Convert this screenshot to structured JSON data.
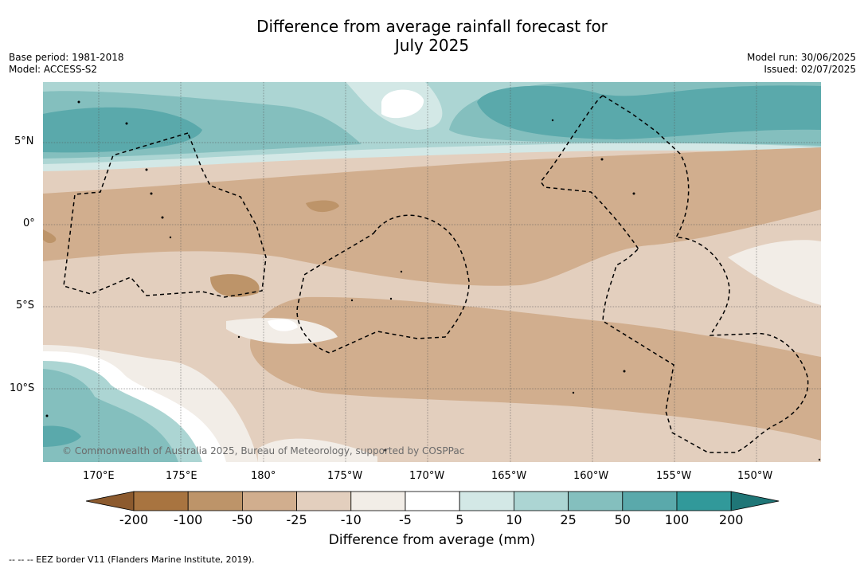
{
  "title_line1": "Difference from average rainfall forecast for",
  "title_line2": "July 2025",
  "base_period": "Base period: 1981-2018",
  "model": "Model: ACCESS-S2",
  "model_run": "Model run: 30/06/2025",
  "issued": "Issued: 02/07/2025",
  "copyright": "© Commonwealth of Australia 2025, Bureau of Meteorology, supported by COSPPac",
  "lat_labels": [
    "5°N",
    "0°",
    "5°S",
    "10°S"
  ],
  "lon_labels": [
    "170°E",
    "175°E",
    "180°",
    "175°W",
    "170°W",
    "165°W",
    "160°W",
    "155°W",
    "150°W"
  ],
  "colorbar": {
    "labels": [
      "-200",
      "-100",
      "-50",
      "-25",
      "-10",
      "-5",
      "5",
      "10",
      "25",
      "50",
      "100",
      "200"
    ],
    "colors": [
      "#8c5a2e",
      "#a87440",
      "#bd9469",
      "#d1ae8e",
      "#e3cfbe",
      "#f2ede7",
      "#ffffff",
      "#d3e8e6",
      "#acd5d3",
      "#84bfbe",
      "#5aa9ab",
      "#31999a",
      "#1f7677"
    ],
    "title": "Difference from average (mm)"
  },
  "footnote": "--  --  -- EEZ border V11 (Flanders Marine Institute, 2019)."
}
